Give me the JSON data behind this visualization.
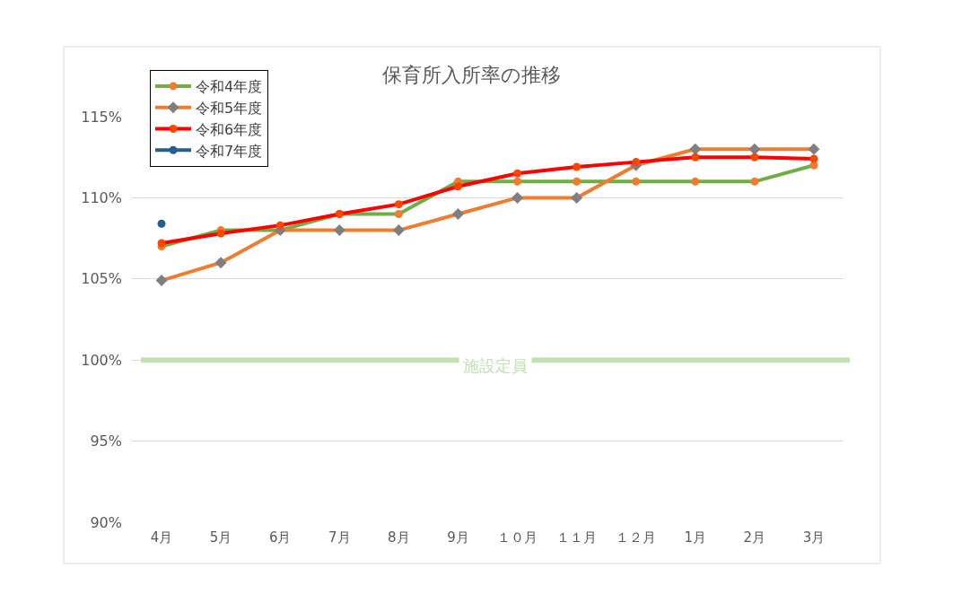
{
  "chart_data": {
    "type": "line",
    "title": "保育所入所率の推移",
    "categories": [
      "4月",
      "5月",
      "6月",
      "7月",
      "8月",
      "9月",
      "１０月",
      "１１月",
      "１２月",
      "1月",
      "2月",
      "3月"
    ],
    "ylim": [
      90,
      115
    ],
    "yticks": [
      {
        "value": 90,
        "label": "90%"
      },
      {
        "value": 95,
        "label": "95%"
      },
      {
        "value": 100,
        "label": "100%"
      },
      {
        "value": 105,
        "label": "105%"
      },
      {
        "value": 110,
        "label": "110%"
      },
      {
        "value": 115,
        "label": "115%"
      }
    ],
    "grid": "y",
    "legend": "top left",
    "line_style": "solid",
    "series": [
      {
        "name": "令和4年度",
        "color": "#70ad47",
        "marker": "circle",
        "colors": [
          "#ed7d31",
          "#ed7d31",
          "#ed7d31",
          "#ed7d31",
          "#ed7d31",
          "#ed7d31",
          "#ed7d31",
          "#ed7d31",
          "#ed7d31",
          "#ed7d31",
          "#ed7d31",
          "#ed7d31"
        ],
        "values": [
          107,
          108,
          108,
          109,
          109,
          111,
          111,
          111,
          111,
          111,
          111,
          112
        ]
      },
      {
        "name": "令和5年度",
        "color": "#ed7d31",
        "marker": "diamond",
        "colors": [
          "#7f7f7f",
          "#7f7f7f",
          "#7f7f7f",
          "#7f7f7f",
          "#7f7f7f",
          "#7f7f7f",
          "#7f7f7f",
          "#7f7f7f",
          "#7f7f7f",
          "#7f7f7f",
          "#7f7f7f",
          "#7f7f7f"
        ],
        "values": [
          104.9,
          106,
          108,
          108,
          108,
          109,
          110,
          110,
          112,
          113,
          113,
          113
        ]
      },
      {
        "name": "令和6年度",
        "color": "#ff0000",
        "marker": "circle",
        "colors": [
          "#ff4500",
          "#ff4500",
          "#ff4500",
          "#ff4500",
          "#ff4500",
          "#ff4500",
          "#ff4500",
          "#ff4500",
          "#ff4500",
          "#ff4500",
          "#ff4500",
          "#ff4500"
        ],
        "values": [
          107.2,
          107.8,
          108.3,
          109,
          109.6,
          110.7,
          111.5,
          111.9,
          112.2,
          112.5,
          112.5,
          112.4
        ]
      },
      {
        "name": "令和7年度",
        "color": "#255e91",
        "marker": "circle",
        "colors": [
          "#255e91",
          "#255e91",
          "#255e91",
          "#255e91",
          "#255e91",
          "#255e91",
          "#255e91",
          "#255e91",
          "#255e91",
          "#255e91",
          "#255e91",
          "#255e91"
        ],
        "values": [
          108.4,
          null,
          null,
          null,
          null,
          null,
          null,
          null,
          null,
          null,
          null,
          null
        ]
      }
    ],
    "ref_lines": [
      {
        "axis": "y",
        "value": 100,
        "label": "施設定員",
        "color": "#c5e0b4"
      }
    ]
  }
}
